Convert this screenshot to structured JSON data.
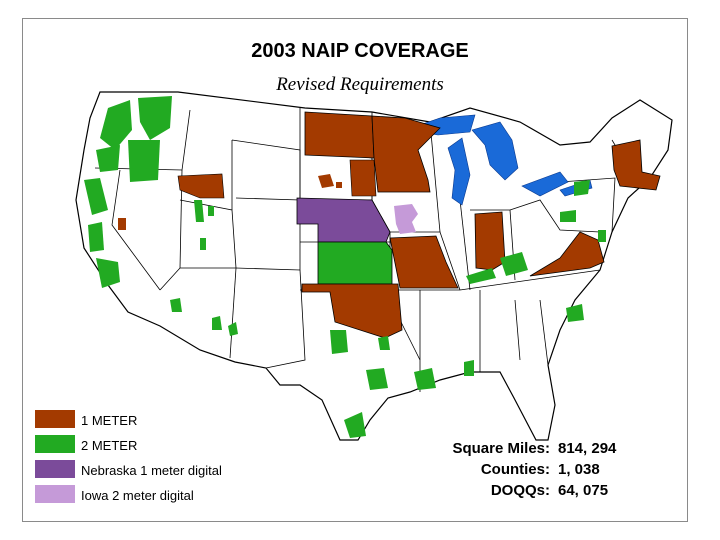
{
  "map": {
    "title": "2003 NAIP COVERAGE",
    "subtitle": "Revised Requirements"
  },
  "colors": {
    "one_meter": "#a33a00",
    "two_meter": "#22aa22",
    "nebraska": "#7b4b9a",
    "iowa": "#c59ad8",
    "water": "#1a6ad8",
    "land": "#ffffff",
    "border": "#000000"
  },
  "legend": {
    "items": [
      {
        "label": "1 METER",
        "color": "#a33a00"
      },
      {
        "label": "2 METER",
        "color": "#22aa22"
      },
      {
        "label": "Nebraska 1 meter digital",
        "color": "#7b4b9a"
      },
      {
        "label": "Iowa 2 meter digital",
        "color": "#c59ad8"
      }
    ]
  },
  "stats": {
    "square_miles_label": "Square Miles:",
    "square_miles_value": "814, 294",
    "counties_label": "Counties:",
    "counties_value": "1, 038",
    "doqqs_label": "DOQQs:",
    "doqqs_value": "64, 075"
  },
  "coverage": {
    "one_meter_states": [
      "North Dakota",
      "Minnesota",
      "Missouri",
      "Oklahoma",
      "Indiana",
      "Virginia",
      "New Hampshire",
      "Vermont",
      "Massachusetts",
      "Idaho (partial)",
      "South Dakota (partial)"
    ],
    "two_meter_states": [
      "Kansas",
      "Washington (partial)",
      "Oregon (partial)",
      "California (partial)"
    ],
    "nebraska_digital": [
      "Nebraska"
    ],
    "iowa_digital": [
      "Iowa (partial)"
    ]
  }
}
